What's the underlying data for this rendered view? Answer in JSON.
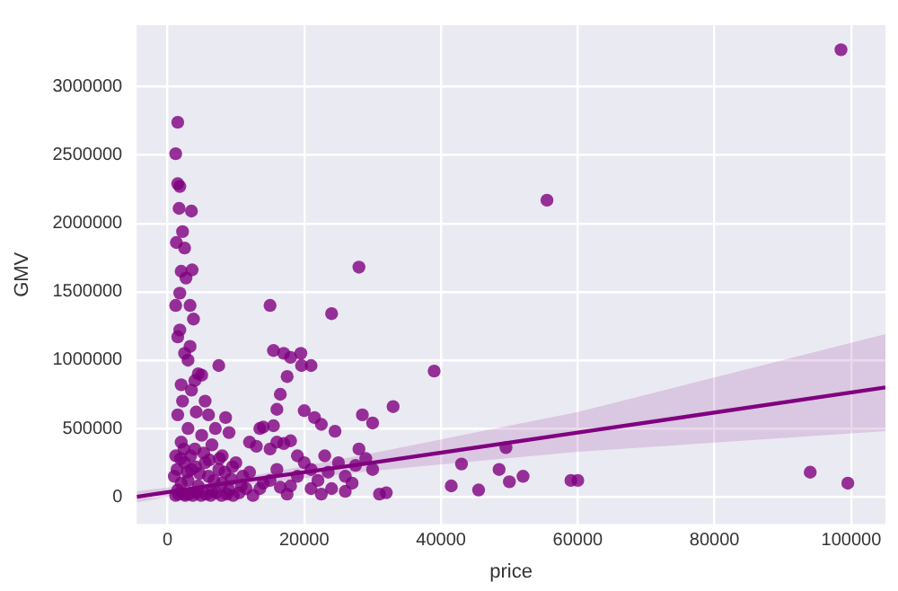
{
  "chart_data": {
    "type": "scatter",
    "xlabel": "price",
    "ylabel": "GMV",
    "xlim": [
      -4500,
      105000
    ],
    "xticks": [
      0,
      20000,
      40000,
      60000,
      80000,
      100000
    ],
    "ylim": [
      -200000,
      3450000
    ],
    "yticks": [
      0,
      500000,
      1000000,
      1500000,
      2000000,
      2500000,
      3000000
    ],
    "grid": true,
    "legend": false,
    "series": [
      {
        "type": "scatter",
        "marker": "circle",
        "color": "#800080",
        "x": [
          1200,
          1600,
          2600,
          3100,
          3700,
          4300,
          4900,
          5600,
          6300,
          7100,
          7900,
          8700,
          9600,
          1400,
          1900,
          2400,
          2900,
          3400,
          4100,
          4700,
          5300,
          6100,
          6800,
          7600,
          8400,
          9300,
          10800,
          12000,
          13500,
          15000,
          16500,
          19000,
          21000,
          23500,
          26000,
          98500,
          55500,
          28000,
          94000,
          99500,
          39000,
          59000,
          60000,
          52000,
          50000,
          49500,
          48500,
          45500,
          43000,
          41500,
          33000,
          30000,
          28500,
          24000,
          15000,
          15500,
          17000,
          18000,
          19500,
          21000,
          19600,
          17500,
          16500,
          16000,
          20000,
          21500,
          22500,
          24500,
          7500,
          1500,
          1200,
          1500,
          1800,
          3500,
          1700,
          2200,
          1300,
          2500,
          3600,
          2000,
          2700,
          1800,
          1200,
          3300,
          3800,
          1800,
          1500,
          3300,
          2500,
          3000,
          4500,
          5000,
          4000,
          2000,
          3500,
          5500,
          2200,
          6000,
          4200,
          8500,
          1500,
          7000,
          9000,
          3000,
          5000,
          2000,
          4000,
          6500,
          8000,
          1200,
          2500,
          3500,
          5500,
          7500,
          9500,
          1000,
          2000,
          3000,
          4500,
          6000,
          8000,
          1500,
          2500,
          6500,
          9000,
          11000,
          12000,
          13000,
          13500,
          14000,
          15000,
          15500,
          16000,
          17000,
          18000,
          19000,
          20000,
          11500,
          14000,
          16000,
          18000,
          21000,
          22000,
          23000,
          24000,
          25000,
          26000,
          27000,
          28000,
          29000,
          30000,
          31000,
          32000,
          27500,
          12500,
          17500,
          22500,
          10000,
          10500
        ],
        "values": [
          10000,
          20000,
          10000,
          20000,
          10000,
          30000,
          10000,
          20000,
          10000,
          30000,
          10000,
          20000,
          10000,
          200000,
          280000,
          350000,
          180000,
          300000,
          220000,
          170000,
          320000,
          270000,
          120000,
          280000,
          180000,
          130000,
          80000,
          180000,
          60000,
          120000,
          70000,
          150000,
          60000,
          180000,
          40000,
          3270000,
          2170000,
          1680000,
          180000,
          100000,
          920000,
          120000,
          120000,
          150000,
          110000,
          360000,
          200000,
          50000,
          240000,
          80000,
          660000,
          540000,
          600000,
          1340000,
          1400000,
          1070000,
          1050000,
          1020000,
          1050000,
          960000,
          960000,
          880000,
          750000,
          640000,
          630000,
          580000,
          530000,
          480000,
          960000,
          2740000,
          2510000,
          2290000,
          2270000,
          2090000,
          2110000,
          1940000,
          1860000,
          1820000,
          1660000,
          1650000,
          1600000,
          1490000,
          1400000,
          1400000,
          1300000,
          1220000,
          1170000,
          1100000,
          1050000,
          1000000,
          900000,
          890000,
          850000,
          820000,
          780000,
          700000,
          700000,
          600000,
          620000,
          580000,
          600000,
          500000,
          470000,
          500000,
          450000,
          400000,
          350000,
          380000,
          300000,
          300000,
          250000,
          200000,
          250000,
          200000,
          220000,
          150000,
          100000,
          120000,
          80000,
          150000,
          100000,
          50000,
          20000,
          40000,
          50000,
          150000,
          400000,
          370000,
          500000,
          510000,
          350000,
          520000,
          400000,
          390000,
          410000,
          300000,
          250000,
          60000,
          100000,
          200000,
          80000,
          200000,
          120000,
          300000,
          60000,
          250000,
          150000,
          100000,
          350000,
          280000,
          200000,
          20000,
          30000,
          230000,
          10000,
          20000,
          20000,
          250000,
          30000
        ]
      },
      {
        "type": "line",
        "marker": "none",
        "color": "#800080",
        "x": [
          -4500,
          10000,
          30000,
          60000,
          105000
        ],
        "values": [
          0,
          110000,
          250000,
          470000,
          800000
        ],
        "lower": [
          -40000,
          80000,
          190000,
          330000,
          480000
        ],
        "upper": [
          40000,
          130000,
          320000,
          620000,
          1190000
        ]
      }
    ]
  }
}
